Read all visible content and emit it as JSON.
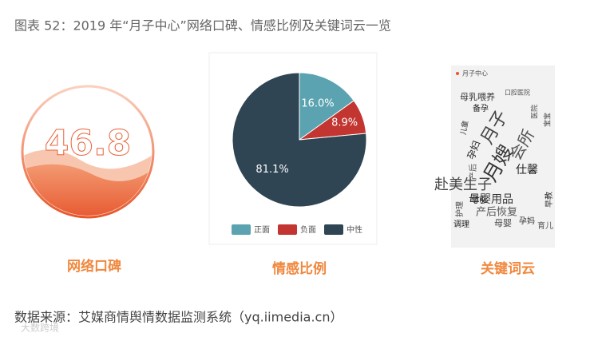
{
  "title": "图表 52：2019 年“月子中心”网络口碑、情感比例及关键词云一览",
  "gauge": {
    "score": 46.8,
    "label": "网络口碑"
  },
  "chart_data": {
    "type": "pie",
    "label": "情感比例",
    "categories": [
      "正面",
      "负面",
      "中性"
    ],
    "values": [
      16.0,
      8.9,
      81.1
    ],
    "value_labels": [
      "16.0%",
      "8.9%",
      "81.1%"
    ],
    "colors": [
      "#5ba3b0",
      "#c23531",
      "#2f4554"
    ]
  },
  "wordcloud": {
    "legend": "月子中心",
    "label": "关键词云",
    "words": [
      "母乳喂养",
      "口腔医院",
      "备孕",
      "月子",
      "月嫂",
      "会所",
      "仕馨",
      "赴美生子",
      "母婴用品",
      "产后恢复",
      "孕前",
      "母婴",
      "孕妈",
      "育儿",
      "调理",
      "护理",
      "儿童",
      "产后",
      "孕妇",
      "宝宝",
      "早教",
      "医院"
    ]
  },
  "source": "数据来源：艾媒商情舆情数据监测系统（yq.iimedia.cn）",
  "watermark": "大数跨境"
}
